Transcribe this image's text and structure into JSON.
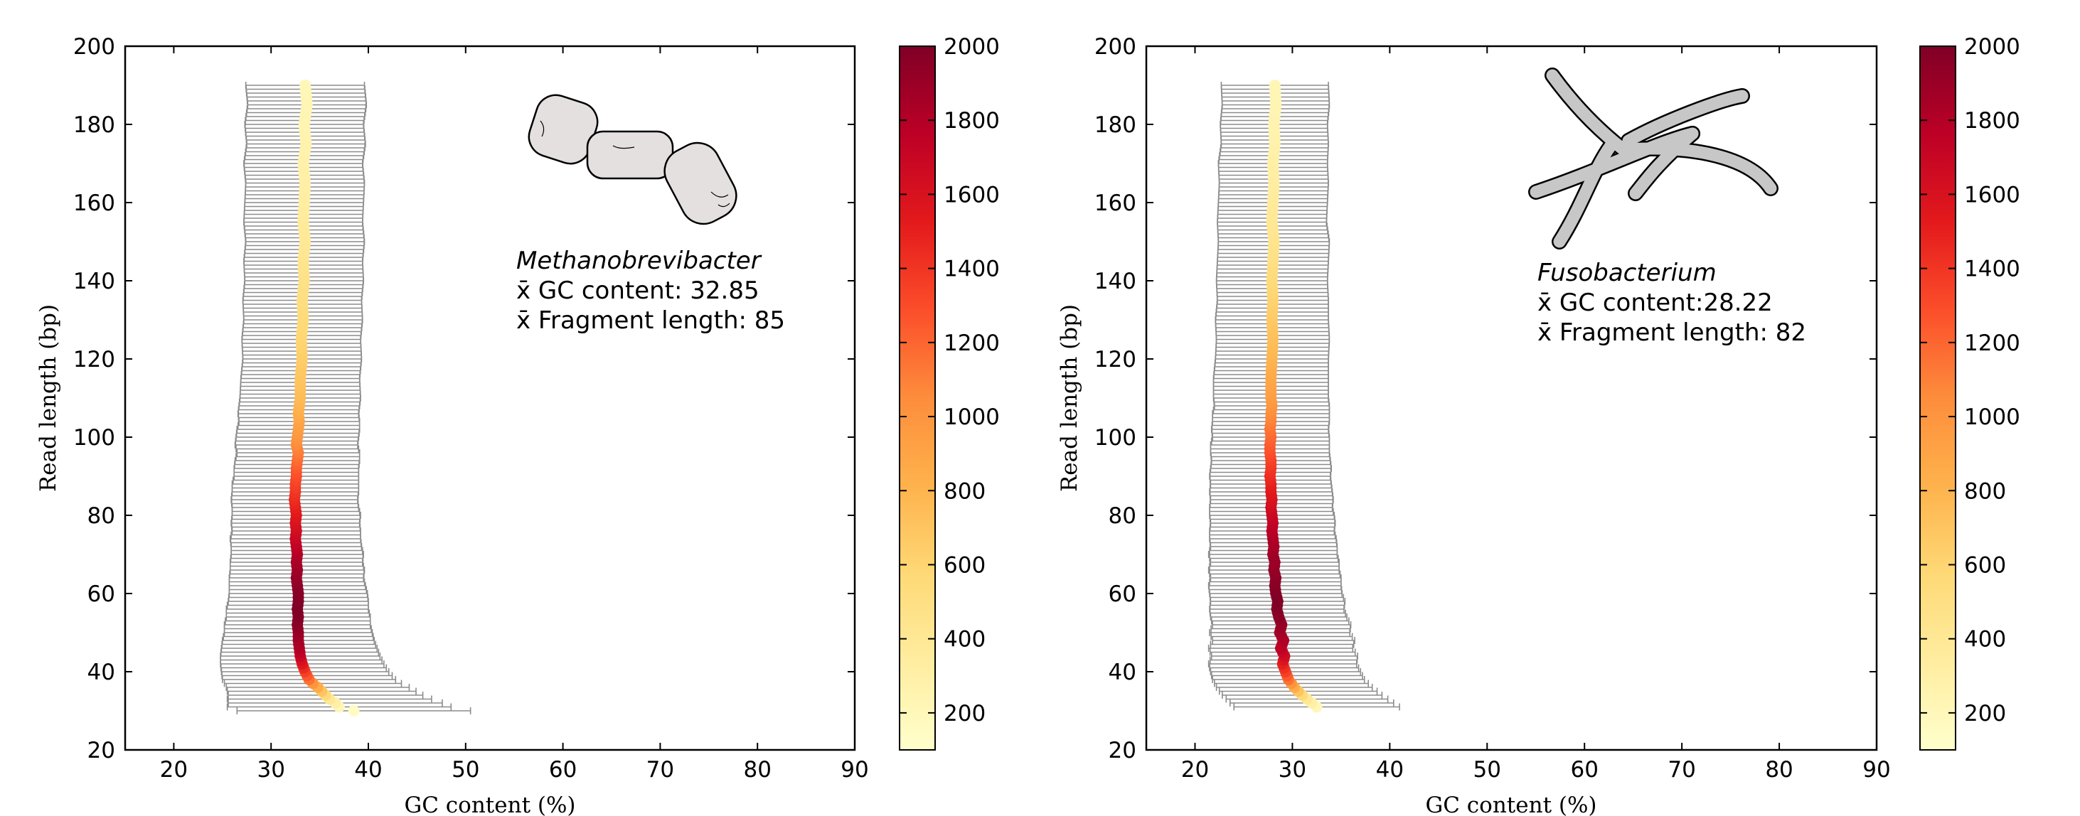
{
  "chart_data": [
    {
      "type": "scatter",
      "title": "",
      "xlabel": "GC content (%)",
      "ylabel": "Read length (bp)",
      "xlim": [
        15,
        90
      ],
      "ylim": [
        20,
        200
      ],
      "xticks": [
        20,
        30,
        40,
        50,
        60,
        70,
        80,
        90
      ],
      "yticks": [
        20,
        40,
        60,
        80,
        100,
        120,
        140,
        160,
        180,
        200
      ],
      "organism": "Methanobrevibacter",
      "gc_text": "x̄ GC content: 32.85",
      "frag_text": "x̄ Fragment length: 85",
      "illustration": "methanobrevibacter-cells-icon",
      "colorbar": {
        "min": 100,
        "max": 2000,
        "ticks": [
          200,
          400,
          600,
          800,
          1000,
          1200,
          1400,
          1600,
          1800,
          2000
        ],
        "colormap": "YlOrRd"
      },
      "series": [
        {
          "name": "mean GC content per read length",
          "read_length": [
            30,
            31,
            32,
            33,
            34,
            35,
            36,
            37,
            38,
            40,
            42,
            44,
            46,
            48,
            50,
            52,
            54,
            56,
            58,
            60,
            62,
            64,
            66,
            68,
            70,
            72,
            74,
            76,
            78,
            80,
            82,
            84,
            86,
            88,
            90,
            92,
            94,
            96,
            98,
            100,
            102,
            104,
            106,
            108,
            110,
            115,
            120,
            125,
            130,
            135,
            140,
            145,
            150,
            155,
            160,
            165,
            170,
            175,
            180,
            185,
            190
          ],
          "gc_mean": [
            38.5,
            37.0,
            36.6,
            36.0,
            35.6,
            35.2,
            34.8,
            34.3,
            33.9,
            33.5,
            33.2,
            33.0,
            32.9,
            32.8,
            32.8,
            32.7,
            32.8,
            32.7,
            32.8,
            32.8,
            32.7,
            32.6,
            32.7,
            32.6,
            32.7,
            32.6,
            32.5,
            32.6,
            32.5,
            32.6,
            32.5,
            32.4,
            32.5,
            32.5,
            32.6,
            32.6,
            32.7,
            32.8,
            32.6,
            32.7,
            32.8,
            32.9,
            32.8,
            32.9,
            33.0,
            33.0,
            33.2,
            33.1,
            33.3,
            33.2,
            33.4,
            33.3,
            33.5,
            33.3,
            33.4,
            33.5,
            33.3,
            33.6,
            33.4,
            33.7,
            33.5
          ],
          "count": [
            150,
            200,
            300,
            400,
            550,
            700,
            850,
            1000,
            1150,
            1350,
            1550,
            1700,
            1800,
            1850,
            1900,
            1950,
            1980,
            2000,
            1990,
            1970,
            1950,
            1920,
            1880,
            1850,
            1800,
            1750,
            1700,
            1650,
            1600,
            1550,
            1500,
            1450,
            1400,
            1350,
            1300,
            1250,
            1180,
            1120,
            1060,
            1000,
            950,
            900,
            850,
            800,
            760,
            700,
            650,
            600,
            560,
            520,
            480,
            440,
            400,
            370,
            340,
            310,
            290,
            270,
            250,
            230,
            210
          ],
          "gc_std": [
            12.0,
            11.5,
            11.0,
            10.5,
            10.0,
            9.7,
            9.4,
            9.1,
            8.9,
            8.6,
            8.4,
            8.2,
            8.0,
            7.8,
            7.6,
            7.5,
            7.4,
            7.3,
            7.2,
            7.1,
            7.0,
            6.9,
            6.9,
            6.8,
            6.8,
            6.7,
            6.7,
            6.6,
            6.6,
            6.6,
            6.5,
            6.5,
            6.5,
            6.5,
            6.4,
            6.4,
            6.4,
            6.3,
            6.3,
            6.3,
            6.3,
            6.2,
            6.2,
            6.2,
            6.2,
            6.1,
            6.1,
            6.1,
            6.1,
            6.1,
            6.1,
            6.1,
            6.1,
            6.1,
            6.1,
            6.1,
            6.1,
            6.1,
            6.1,
            6.1,
            6.1
          ]
        }
      ]
    },
    {
      "type": "scatter",
      "title": "",
      "xlabel": "GC content (%)",
      "ylabel": "Read length (bp)",
      "xlim": [
        15,
        90
      ],
      "ylim": [
        20,
        200
      ],
      "xticks": [
        20,
        30,
        40,
        50,
        60,
        70,
        80,
        90
      ],
      "yticks": [
        20,
        40,
        60,
        80,
        100,
        120,
        140,
        160,
        180,
        200
      ],
      "organism": "Fusobacterium",
      "gc_text": "x̄ GC content:28.22",
      "frag_text": "x̄ Fragment length: 82",
      "illustration": "fusobacterium-rods-icon",
      "colorbar": {
        "min": 100,
        "max": 2000,
        "ticks": [
          200,
          400,
          600,
          800,
          1000,
          1200,
          1400,
          1600,
          1800,
          2000
        ],
        "colormap": "YlOrRd"
      },
      "series": [
        {
          "name": "mean GC content per read length",
          "read_length": [
            31,
            32,
            33,
            34,
            35,
            36,
            37,
            38,
            40,
            42,
            44,
            46,
            48,
            50,
            52,
            54,
            56,
            58,
            60,
            62,
            64,
            66,
            68,
            70,
            72,
            74,
            76,
            78,
            80,
            82,
            84,
            86,
            88,
            90,
            92,
            94,
            96,
            98,
            100,
            102,
            104,
            106,
            108,
            110,
            115,
            120,
            125,
            130,
            135,
            140,
            145,
            150,
            155,
            160,
            165,
            170,
            175,
            180,
            185,
            190
          ],
          "gc_mean": [
            32.5,
            32.0,
            31.5,
            31.0,
            30.6,
            30.2,
            29.9,
            29.6,
            29.3,
            29.0,
            29.2,
            28.8,
            29.1,
            28.7,
            28.9,
            28.6,
            28.4,
            28.5,
            28.3,
            28.2,
            28.3,
            28.1,
            28.2,
            28.0,
            28.1,
            28.0,
            27.9,
            28.0,
            27.9,
            27.8,
            27.9,
            27.8,
            27.8,
            27.7,
            27.8,
            27.8,
            27.7,
            27.7,
            27.8,
            27.7,
            27.8,
            27.8,
            27.9,
            27.8,
            27.8,
            27.9,
            28.0,
            27.9,
            28.0,
            27.9,
            28.0,
            28.1,
            27.9,
            28.0,
            28.1,
            28.0,
            28.2,
            28.1,
            28.3,
            28.2
          ],
          "count": [
            200,
            300,
            400,
            550,
            700,
            850,
            1000,
            1150,
            1350,
            1500,
            1650,
            1750,
            1800,
            1850,
            1900,
            1950,
            1980,
            2000,
            1990,
            1970,
            1950,
            1920,
            1900,
            1880,
            1850,
            1820,
            1780,
            1750,
            1700,
            1650,
            1600,
            1550,
            1500,
            1450,
            1400,
            1350,
            1300,
            1250,
            1200,
            1150,
            1100,
            1050,
            1000,
            950,
            880,
            800,
            740,
            680,
            620,
            560,
            500,
            450,
            410,
            370,
            340,
            310,
            280,
            260,
            240,
            220
          ],
          "gc_std": [
            8.5,
            8.4,
            8.3,
            8.2,
            8.1,
            8.0,
            7.9,
            7.8,
            7.7,
            7.6,
            7.5,
            7.4,
            7.3,
            7.2,
            7.1,
            7.0,
            6.9,
            6.9,
            6.8,
            6.8,
            6.7,
            6.7,
            6.6,
            6.6,
            6.5,
            6.5,
            6.4,
            6.4,
            6.4,
            6.3,
            6.3,
            6.3,
            6.2,
            6.2,
            6.2,
            6.1,
            6.1,
            6.1,
            6.0,
            6.0,
            6.0,
            6.0,
            5.9,
            5.9,
            5.9,
            5.8,
            5.8,
            5.8,
            5.7,
            5.7,
            5.7,
            5.7,
            5.6,
            5.6,
            5.6,
            5.6,
            5.5,
            5.5,
            5.5,
            5.5
          ]
        }
      ]
    }
  ]
}
